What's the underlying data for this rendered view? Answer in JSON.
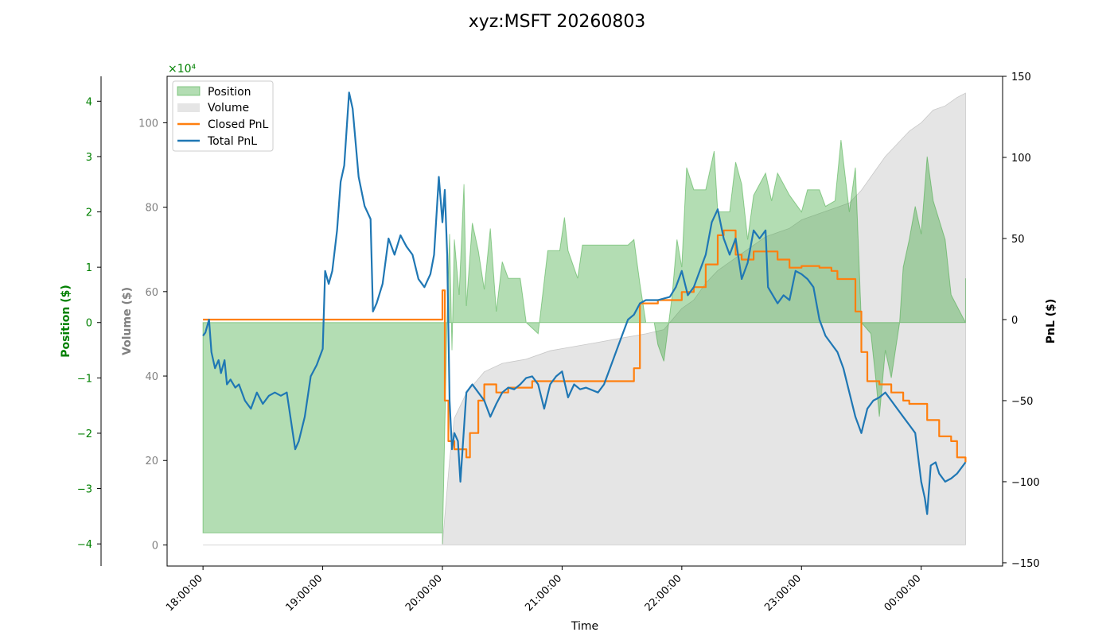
{
  "chart_data": {
    "type": "area",
    "title": "xyz:MSFT 20260803",
    "xlabel": "Time",
    "x_ticks": [
      "18:00:00",
      "19:00:00",
      "20:00:00",
      "21:00:00",
      "22:00:00",
      "23:00:00",
      "00:00:00"
    ],
    "x_range_hours": [
      17.7,
      24.68
    ],
    "axes": {
      "position": {
        "label": "Position ($)",
        "color": "#008000",
        "ylim": [
          -4.4,
          4.45
        ],
        "ticks": [
          -4,
          -3,
          -2,
          -1,
          0,
          1,
          2,
          3,
          4
        ],
        "multiplier": "×10⁴"
      },
      "volume": {
        "label": "Volume ($)",
        "color": "#808080",
        "ylim": [
          -5,
          111
        ],
        "ticks": [
          0,
          20,
          40,
          60,
          80,
          100
        ]
      },
      "pnl": {
        "label": "PnL ($)",
        "color": "#000000",
        "ylim": [
          -152,
          150
        ],
        "ticks": [
          -150,
          -100,
          -50,
          0,
          50,
          100,
          150
        ]
      }
    },
    "legend": {
      "placement": "top-left",
      "entries": [
        {
          "label": "Position",
          "color": "#2ca02c"
        },
        {
          "label": "Volume",
          "color": "#d3d3d3"
        },
        {
          "label": "Closed PnL",
          "color": "#ff7f0e"
        },
        {
          "label": "Total PnL",
          "color": "#1f77b4"
        }
      ]
    },
    "series": [
      {
        "name": "Position",
        "unit": "x10^4 $",
        "points": [
          [
            18.0,
            -3.8
          ],
          [
            20.0,
            -3.8
          ],
          [
            20.0,
            -4.0
          ],
          [
            20.04,
            0.2
          ],
          [
            20.06,
            1.6
          ],
          [
            20.08,
            -0.5
          ],
          [
            20.1,
            1.5
          ],
          [
            20.14,
            0.5
          ],
          [
            20.18,
            2.5
          ],
          [
            20.2,
            0.3
          ],
          [
            20.25,
            1.8
          ],
          [
            20.3,
            1.3
          ],
          [
            20.35,
            0.6
          ],
          [
            20.4,
            1.7
          ],
          [
            20.45,
            0.2
          ],
          [
            20.5,
            1.1
          ],
          [
            20.55,
            0.8
          ],
          [
            20.65,
            0.8
          ],
          [
            20.7,
            0.0
          ],
          [
            20.8,
            -0.2
          ],
          [
            20.88,
            1.3
          ],
          [
            20.98,
            1.3
          ],
          [
            21.02,
            1.9
          ],
          [
            21.05,
            1.3
          ],
          [
            21.13,
            0.8
          ],
          [
            21.17,
            1.4
          ],
          [
            21.55,
            1.4
          ],
          [
            21.6,
            1.5
          ],
          [
            21.65,
            0.7
          ],
          [
            21.7,
            0.0
          ],
          [
            21.77,
            0.0
          ],
          [
            21.8,
            -0.4
          ],
          [
            21.85,
            -0.7
          ],
          [
            21.92,
            0.5
          ],
          [
            21.96,
            1.5
          ],
          [
            22.0,
            1.0
          ],
          [
            22.04,
            2.8
          ],
          [
            22.1,
            2.4
          ],
          [
            22.2,
            2.4
          ],
          [
            22.27,
            3.1
          ],
          [
            22.3,
            2.0
          ],
          [
            22.4,
            2.0
          ],
          [
            22.45,
            2.9
          ],
          [
            22.5,
            2.5
          ],
          [
            22.55,
            1.5
          ],
          [
            22.6,
            2.3
          ],
          [
            22.7,
            2.7
          ],
          [
            22.75,
            2.2
          ],
          [
            22.8,
            2.7
          ],
          [
            22.9,
            2.3
          ],
          [
            23.0,
            2.0
          ],
          [
            23.05,
            2.4
          ],
          [
            23.15,
            2.4
          ],
          [
            23.2,
            2.1
          ],
          [
            23.28,
            2.2
          ],
          [
            23.33,
            3.3
          ],
          [
            23.4,
            2.0
          ],
          [
            23.45,
            2.8
          ],
          [
            23.5,
            0.0
          ],
          [
            23.58,
            -0.2
          ],
          [
            23.62,
            -1.0
          ],
          [
            23.65,
            -1.7
          ],
          [
            23.7,
            -0.5
          ],
          [
            23.75,
            -1.0
          ],
          [
            23.82,
            0.0
          ],
          [
            23.85,
            1.0
          ],
          [
            23.9,
            1.5
          ],
          [
            23.95,
            2.1
          ],
          [
            24.0,
            1.6
          ],
          [
            24.05,
            3.0
          ],
          [
            24.1,
            2.2
          ],
          [
            24.2,
            1.5
          ],
          [
            24.25,
            0.5
          ],
          [
            24.37,
            0.0
          ],
          [
            24.37,
            0.8
          ]
        ]
      },
      {
        "name": "Volume",
        "unit": "$",
        "points": [
          [
            18.0,
            0
          ],
          [
            20.0,
            0
          ],
          [
            20.03,
            10
          ],
          [
            20.06,
            20
          ],
          [
            20.1,
            30
          ],
          [
            20.2,
            36
          ],
          [
            20.35,
            41
          ],
          [
            20.5,
            43
          ],
          [
            20.7,
            44
          ],
          [
            20.9,
            46
          ],
          [
            21.1,
            47
          ],
          [
            21.3,
            48
          ],
          [
            21.5,
            49
          ],
          [
            21.7,
            50
          ],
          [
            21.85,
            51
          ],
          [
            22.0,
            56
          ],
          [
            22.1,
            58
          ],
          [
            22.2,
            62
          ],
          [
            22.3,
            65
          ],
          [
            22.4,
            67
          ],
          [
            22.5,
            69
          ],
          [
            22.6,
            71
          ],
          [
            22.7,
            73
          ],
          [
            22.8,
            74
          ],
          [
            22.9,
            75
          ],
          [
            23.0,
            77
          ],
          [
            23.1,
            78
          ],
          [
            23.2,
            79
          ],
          [
            23.3,
            80
          ],
          [
            23.4,
            81
          ],
          [
            23.5,
            84
          ],
          [
            23.6,
            88
          ],
          [
            23.7,
            92
          ],
          [
            23.8,
            95
          ],
          [
            23.9,
            98
          ],
          [
            24.0,
            100
          ],
          [
            24.1,
            103
          ],
          [
            24.2,
            104
          ],
          [
            24.3,
            106
          ],
          [
            24.37,
            107
          ]
        ]
      },
      {
        "name": "Closed PnL",
        "unit": "$",
        "points": [
          [
            18.0,
            0
          ],
          [
            20.0,
            0
          ],
          [
            20.0,
            18
          ],
          [
            20.02,
            -50
          ],
          [
            20.05,
            -75
          ],
          [
            20.1,
            -80
          ],
          [
            20.2,
            -85
          ],
          [
            20.23,
            -70
          ],
          [
            20.3,
            -50
          ],
          [
            20.35,
            -40
          ],
          [
            20.45,
            -45
          ],
          [
            20.55,
            -42
          ],
          [
            20.75,
            -38
          ],
          [
            21.0,
            -38
          ],
          [
            21.15,
            -38
          ],
          [
            21.55,
            -38
          ],
          [
            21.6,
            -30
          ],
          [
            21.65,
            10
          ],
          [
            21.8,
            12
          ],
          [
            22.0,
            17
          ],
          [
            22.1,
            20
          ],
          [
            22.2,
            34
          ],
          [
            22.3,
            52
          ],
          [
            22.35,
            55
          ],
          [
            22.45,
            40
          ],
          [
            22.5,
            37
          ],
          [
            22.6,
            42
          ],
          [
            22.8,
            37
          ],
          [
            22.9,
            32
          ],
          [
            23.0,
            33
          ],
          [
            23.15,
            32
          ],
          [
            23.25,
            30
          ],
          [
            23.3,
            25
          ],
          [
            23.4,
            25
          ],
          [
            23.45,
            5
          ],
          [
            23.5,
            -20
          ],
          [
            23.55,
            -38
          ],
          [
            23.65,
            -40
          ],
          [
            23.75,
            -45
          ],
          [
            23.85,
            -50
          ],
          [
            23.9,
            -52
          ],
          [
            24.0,
            -52
          ],
          [
            24.05,
            -62
          ],
          [
            24.15,
            -72
          ],
          [
            24.25,
            -75
          ],
          [
            24.3,
            -85
          ],
          [
            24.37,
            -88
          ]
        ]
      },
      {
        "name": "Total PnL",
        "unit": "$",
        "points": [
          [
            18.0,
            -10
          ],
          [
            18.02,
            -8
          ],
          [
            18.05,
            0
          ],
          [
            18.07,
            -20
          ],
          [
            18.1,
            -30
          ],
          [
            18.13,
            -25
          ],
          [
            18.15,
            -33
          ],
          [
            18.18,
            -25
          ],
          [
            18.2,
            -40
          ],
          [
            18.23,
            -37
          ],
          [
            18.27,
            -42
          ],
          [
            18.3,
            -40
          ],
          [
            18.35,
            -50
          ],
          [
            18.4,
            -55
          ],
          [
            18.45,
            -45
          ],
          [
            18.5,
            -52
          ],
          [
            18.55,
            -47
          ],
          [
            18.6,
            -45
          ],
          [
            18.65,
            -47
          ],
          [
            18.7,
            -45
          ],
          [
            18.77,
            -80
          ],
          [
            18.8,
            -75
          ],
          [
            18.85,
            -60
          ],
          [
            18.9,
            -35
          ],
          [
            18.95,
            -28
          ],
          [
            19.0,
            -18
          ],
          [
            19.02,
            30
          ],
          [
            19.05,
            22
          ],
          [
            19.08,
            30
          ],
          [
            19.12,
            55
          ],
          [
            19.15,
            85
          ],
          [
            19.18,
            95
          ],
          [
            19.22,
            140
          ],
          [
            19.25,
            130
          ],
          [
            19.3,
            88
          ],
          [
            19.35,
            70
          ],
          [
            19.4,
            62
          ],
          [
            19.42,
            5
          ],
          [
            19.45,
            10
          ],
          [
            19.5,
            22
          ],
          [
            19.55,
            50
          ],
          [
            19.6,
            40
          ],
          [
            19.65,
            52
          ],
          [
            19.7,
            45
          ],
          [
            19.75,
            40
          ],
          [
            19.8,
            25
          ],
          [
            19.85,
            20
          ],
          [
            19.9,
            28
          ],
          [
            19.93,
            40
          ],
          [
            19.97,
            88
          ],
          [
            20.0,
            60
          ],
          [
            20.02,
            80
          ],
          [
            20.04,
            40
          ],
          [
            20.06,
            -50
          ],
          [
            20.08,
            -80
          ],
          [
            20.1,
            -70
          ],
          [
            20.13,
            -75
          ],
          [
            20.15,
            -100
          ],
          [
            20.2,
            -45
          ],
          [
            20.25,
            -40
          ],
          [
            20.3,
            -45
          ],
          [
            20.35,
            -50
          ],
          [
            20.4,
            -60
          ],
          [
            20.45,
            -52
          ],
          [
            20.5,
            -45
          ],
          [
            20.55,
            -42
          ],
          [
            20.6,
            -43
          ],
          [
            20.65,
            -40
          ],
          [
            20.7,
            -36
          ],
          [
            20.75,
            -35
          ],
          [
            20.8,
            -40
          ],
          [
            20.85,
            -55
          ],
          [
            20.9,
            -40
          ],
          [
            20.95,
            -35
          ],
          [
            21.0,
            -32
          ],
          [
            21.05,
            -48
          ],
          [
            21.1,
            -40
          ],
          [
            21.15,
            -43
          ],
          [
            21.2,
            -42
          ],
          [
            21.3,
            -45
          ],
          [
            21.35,
            -40
          ],
          [
            21.4,
            -30
          ],
          [
            21.45,
            -20
          ],
          [
            21.5,
            -10
          ],
          [
            21.55,
            0
          ],
          [
            21.6,
            3
          ],
          [
            21.65,
            10
          ],
          [
            21.7,
            12
          ],
          [
            21.8,
            12
          ],
          [
            21.9,
            14
          ],
          [
            21.95,
            20
          ],
          [
            22.0,
            30
          ],
          [
            22.05,
            15
          ],
          [
            22.1,
            20
          ],
          [
            22.15,
            30
          ],
          [
            22.2,
            40
          ],
          [
            22.25,
            60
          ],
          [
            22.3,
            68
          ],
          [
            22.35,
            50
          ],
          [
            22.4,
            40
          ],
          [
            22.45,
            50
          ],
          [
            22.5,
            25
          ],
          [
            22.55,
            35
          ],
          [
            22.6,
            55
          ],
          [
            22.65,
            50
          ],
          [
            22.7,
            55
          ],
          [
            22.72,
            20
          ],
          [
            22.8,
            10
          ],
          [
            22.85,
            15
          ],
          [
            22.9,
            12
          ],
          [
            22.95,
            30
          ],
          [
            23.0,
            28
          ],
          [
            23.05,
            25
          ],
          [
            23.1,
            20
          ],
          [
            23.15,
            0
          ],
          [
            23.2,
            -10
          ],
          [
            23.25,
            -15
          ],
          [
            23.3,
            -20
          ],
          [
            23.35,
            -30
          ],
          [
            23.4,
            -45
          ],
          [
            23.45,
            -60
          ],
          [
            23.5,
            -70
          ],
          [
            23.55,
            -55
          ],
          [
            23.6,
            -50
          ],
          [
            23.65,
            -48
          ],
          [
            23.7,
            -45
          ],
          [
            23.75,
            -50
          ],
          [
            23.8,
            -55
          ],
          [
            23.85,
            -60
          ],
          [
            23.9,
            -65
          ],
          [
            23.95,
            -70
          ],
          [
            24.0,
            -100
          ],
          [
            24.03,
            -110
          ],
          [
            24.05,
            -120
          ],
          [
            24.08,
            -90
          ],
          [
            24.12,
            -88
          ],
          [
            24.15,
            -95
          ],
          [
            24.2,
            -100
          ],
          [
            24.25,
            -98
          ],
          [
            24.3,
            -95
          ],
          [
            24.37,
            -88
          ]
        ]
      }
    ]
  }
}
